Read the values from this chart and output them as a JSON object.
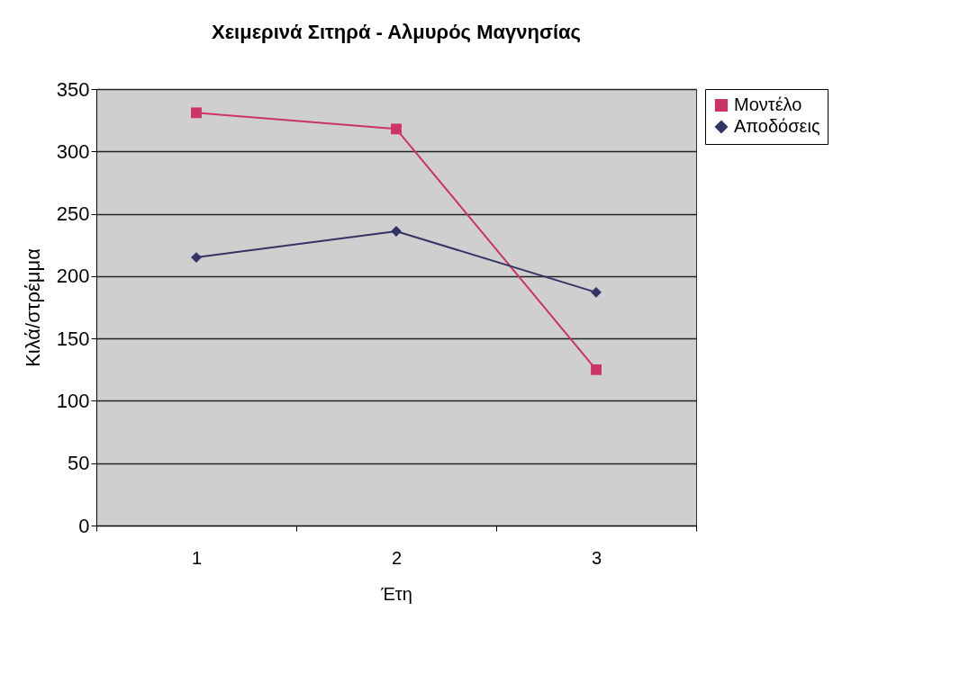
{
  "chart_data": {
    "type": "line",
    "title": "Χειμερινά Σιτηρά - Αλμυρός Μαγνησίας",
    "xlabel": "Έτη",
    "ylabel": "Κιλά/στρέμμα",
    "categories": [
      "1",
      "2",
      "3"
    ],
    "series": [
      {
        "name": "Μοντέλο",
        "color": "#cc3366",
        "marker": "square",
        "values": [
          331,
          318,
          125
        ]
      },
      {
        "name": "Αποδόσεις",
        "color": "#333366",
        "marker": "diamond",
        "values": [
          215,
          236,
          187
        ]
      }
    ],
    "ylim": [
      0,
      350
    ],
    "yticks": [
      0,
      50,
      100,
      150,
      200,
      250,
      300,
      350
    ],
    "grid": "y",
    "legend": "right"
  }
}
